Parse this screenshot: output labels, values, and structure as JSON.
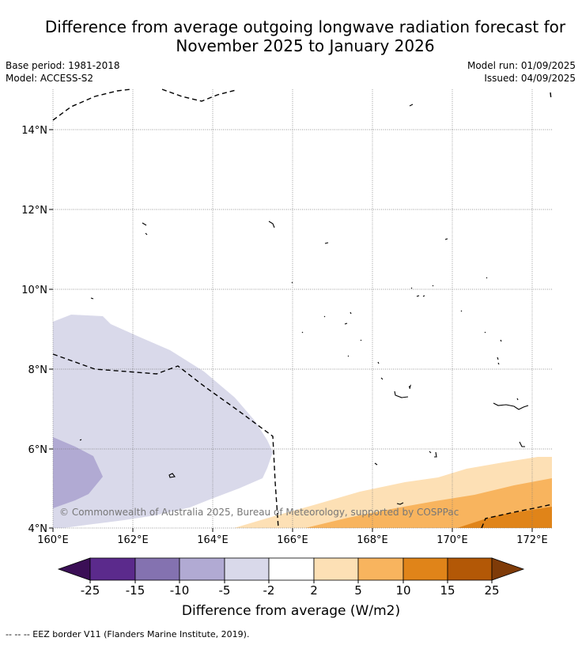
{
  "title": {
    "line1": "Difference from average outgoing longwave radiation forecast for",
    "line2": "November 2025 to January 2026"
  },
  "meta": {
    "base_period": "Base period: 1981-2018",
    "model": "Model: ACCESS-S2",
    "model_run": "Model run: 01/09/2025",
    "issued": "Issued: 04/09/2025"
  },
  "map": {
    "lon_ticks": [
      "160°E",
      "162°E",
      "164°E",
      "166°E",
      "168°E",
      "170°E",
      "172°E"
    ],
    "lat_ticks": [
      "4°N",
      "6°N",
      "8°N",
      "10°N",
      "12°N",
      "14°N"
    ],
    "lon_range": [
      160,
      172.5
    ],
    "lat_range": [
      4,
      15
    ]
  },
  "copyright": "© Commonwealth of Australia 2025, Bureau of Meteorology, supported by COSPPac",
  "colorbar": {
    "title": "Difference from average (W/m2)",
    "labels": [
      "-25",
      "-15",
      "-10",
      "-5",
      "-2",
      "2",
      "5",
      "10",
      "15",
      "25"
    ],
    "colors": [
      "#3b0f56",
      "#5b2a8c",
      "#8472b0",
      "#b1aad3",
      "#d9d9ea",
      "#ffffff",
      "#fde0b5",
      "#f8b45e",
      "#e08419",
      "#b35806",
      "#7f3b08"
    ]
  },
  "footnote": "--  --  -- EEZ border V11 (Flanders Marine Institute, 2019)."
}
